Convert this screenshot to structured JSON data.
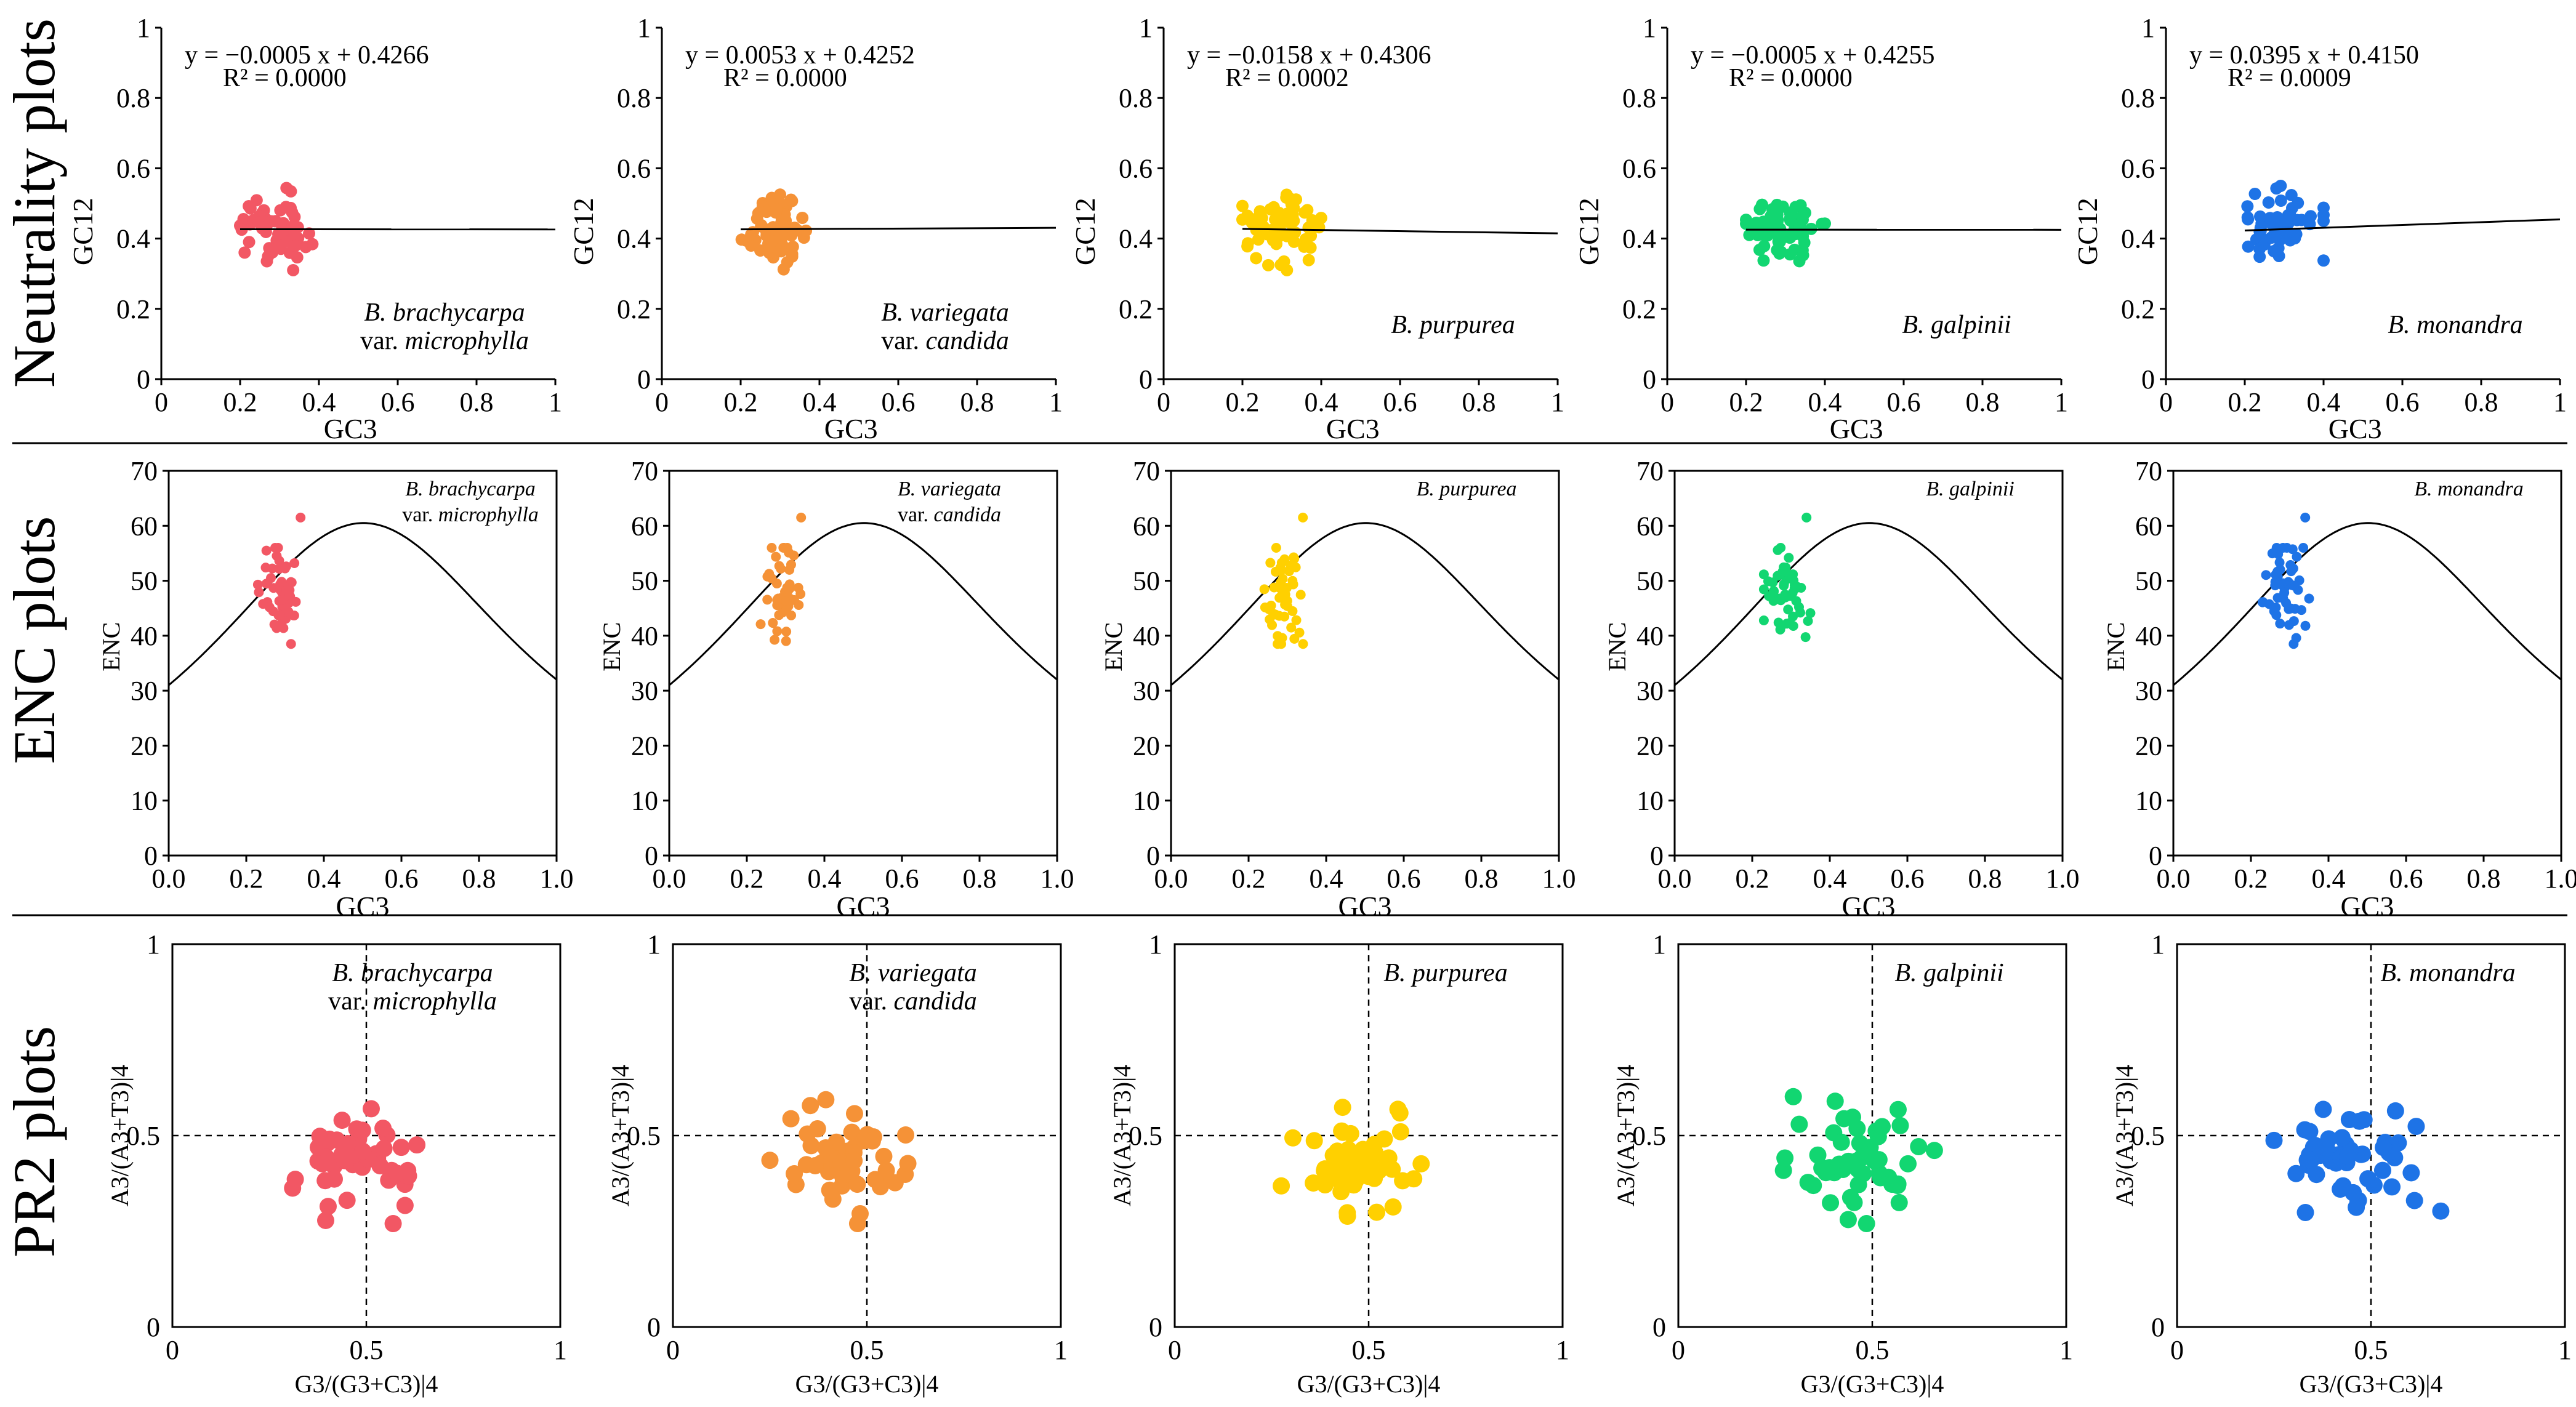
{
  "row_labels": [
    "Neutrality plots",
    "ENC plots",
    "PR2 plots"
  ],
  "species": [
    {
      "name": "B. brachycarpa",
      "varLabel": "var.",
      "varName": "microphylla",
      "color": "#f25764"
    },
    {
      "name": "B. variegata",
      "varLabel": "var.",
      "varName": "candida",
      "color": "#f59237"
    },
    {
      "name": "B. purpurea",
      "varLabel": "",
      "varName": "",
      "color": "#ffd000"
    },
    {
      "name": "B. galpinii",
      "varLabel": "",
      "varName": "",
      "color": "#12d671"
    },
    {
      "name": "B. monandra",
      "varLabel": "",
      "varName": "",
      "color": "#1e73e6"
    }
  ],
  "chart_data": [
    {
      "type": "scatter",
      "title": "Neutrality plots",
      "xlabel": "GC3",
      "ylabel": "GC12",
      "xlim": [
        0,
        1
      ],
      "ylim": [
        0,
        1
      ],
      "xticks": [
        "0",
        "0.2",
        "0.4",
        "0.6",
        "0.8",
        "1"
      ],
      "yticks": [
        "0",
        "0.2",
        "0.4",
        "0.6",
        "0.8",
        "1"
      ],
      "series": [
        {
          "name": "B. brachycarpa var. microphylla",
          "equation": "y = −0.0005 x + 0.4266",
          "r2": "R² = 0.0000",
          "slope": -0.0005,
          "intercept": 0.4266
        },
        {
          "name": "B. variegata var. candida",
          "equation": "y = 0.0053 x + 0.4252",
          "r2": "R² = 0.0000",
          "slope": 0.0053,
          "intercept": 0.4252
        },
        {
          "name": "B. purpurea",
          "equation": "y = −0.0158 x + 0.4306",
          "r2": "R² = 0.0002",
          "slope": -0.0158,
          "intercept": 0.4306
        },
        {
          "name": "B. galpinii",
          "equation": "y = −0.0005 x + 0.4255",
          "r2": "R² = 0.0000",
          "slope": -0.0005,
          "intercept": 0.4255
        },
        {
          "name": "B. monandra",
          "equation": "y = 0.0395 x + 0.4150",
          "r2": "R² = 0.0009",
          "slope": 0.0395,
          "intercept": 0.415
        }
      ],
      "points_per_species": 65,
      "gc3_range": [
        0.2,
        0.4
      ],
      "gc12_range": [
        0.31,
        0.55
      ]
    },
    {
      "type": "scatter",
      "title": "ENC plots",
      "xlabel": "GC3",
      "ylabel": "ENC",
      "xlim": [
        0,
        1
      ],
      "ylim": [
        0,
        70
      ],
      "xticks": [
        "0.0",
        "0.2",
        "0.4",
        "0.6",
        "0.8",
        "1.0"
      ],
      "yticks": [
        "0",
        "10",
        "20",
        "30",
        "40",
        "50",
        "60",
        "70"
      ],
      "expected_curve": "ENC = 2 + GC3 + 29/(GC3^2 + (1 - GC3)^2)",
      "points_per_species": 50,
      "gc3_range": [
        0.23,
        0.35
      ],
      "enc_range": [
        37,
        62
      ]
    },
    {
      "type": "scatter",
      "title": "PR2 plots",
      "xlabel": "G3/(G3+C3)|4",
      "ylabel": "A3/(A3+T3)|4",
      "xlim": [
        0,
        1
      ],
      "ylim": [
        0,
        1
      ],
      "xticks": [
        "0",
        "0.5",
        "1"
      ],
      "yticks": [
        "0",
        "0.5",
        "1"
      ],
      "reference_lines": {
        "x": 0.5,
        "y": 0.5
      },
      "points_per_species": 50,
      "x_range": [
        0.25,
        0.68
      ],
      "y_range": [
        0.27,
        0.62
      ]
    }
  ]
}
